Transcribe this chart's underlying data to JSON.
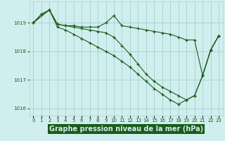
{
  "background_color": "#d1eeee",
  "grid_color": "#a8d5d5",
  "line_color": "#1a5c1a",
  "marker_color": "#1a5c1a",
  "title": "Graphe pression niveau de la mer (hPa)",
  "ylim": [
    1015.75,
    1019.75
  ],
  "xlim": [
    -0.5,
    23.5
  ],
  "yticks": [
    1016,
    1017,
    1018,
    1019
  ],
  "xtick_labels": [
    "0",
    "1",
    "2",
    "3",
    "4",
    "5",
    "6",
    "7",
    "8",
    "9",
    "10",
    "11",
    "12",
    "13",
    "14",
    "15",
    "16",
    "17",
    "18",
    "19",
    "20",
    "21",
    "22",
    "23"
  ],
  "series": [
    {
      "x": [
        0,
        1,
        2,
        3,
        4,
        5,
        6,
        7,
        8,
        9,
        10,
        11,
        12,
        13,
        14,
        15,
        16,
        17,
        18,
        19,
        20,
        21,
        22,
        23
      ],
      "y": [
        1019.0,
        1019.3,
        1019.45,
        1018.95,
        1018.9,
        1018.9,
        1018.85,
        1018.85,
        1018.85,
        1019.0,
        1019.25,
        1018.9,
        1018.85,
        1018.8,
        1018.75,
        1018.7,
        1018.65,
        1018.6,
        1018.5,
        1018.4,
        1018.4,
        1017.15,
        1018.05,
        1018.55
      ]
    },
    {
      "x": [
        0,
        1,
        2,
        3,
        4,
        5,
        6,
        7,
        8,
        9,
        10,
        11,
        12,
        13,
        14,
        15,
        16,
        17,
        18,
        19,
        20,
        21,
        22,
        23
      ],
      "y": [
        1019.0,
        1019.3,
        1019.45,
        1018.95,
        1018.9,
        1018.85,
        1018.8,
        1018.75,
        1018.7,
        1018.65,
        1018.5,
        1018.2,
        1017.9,
        1017.55,
        1017.2,
        1016.95,
        1016.75,
        1016.6,
        1016.45,
        1016.3,
        1016.45,
        1017.15,
        1018.05,
        1018.55
      ]
    },
    {
      "x": [
        0,
        2,
        3,
        4,
        5,
        6,
        7,
        8,
        9,
        10,
        11,
        12,
        13,
        14,
        15,
        16,
        17,
        18,
        19,
        20,
        21,
        22,
        23
      ],
      "y": [
        1019.0,
        1019.45,
        1018.85,
        1018.75,
        1018.6,
        1018.45,
        1018.3,
        1018.15,
        1018.0,
        1017.85,
        1017.65,
        1017.45,
        1017.2,
        1016.95,
        1016.7,
        1016.5,
        1016.3,
        1016.15,
        1016.3,
        1016.45,
        1017.15,
        1018.05,
        1018.55
      ]
    }
  ],
  "title_fontsize": 7,
  "tick_fontsize": 5,
  "title_color": "#1a5c1a",
  "tick_color": "#1a5c1a",
  "title_bg": "#1a5c1a",
  "title_text_color": "#d1eeee"
}
